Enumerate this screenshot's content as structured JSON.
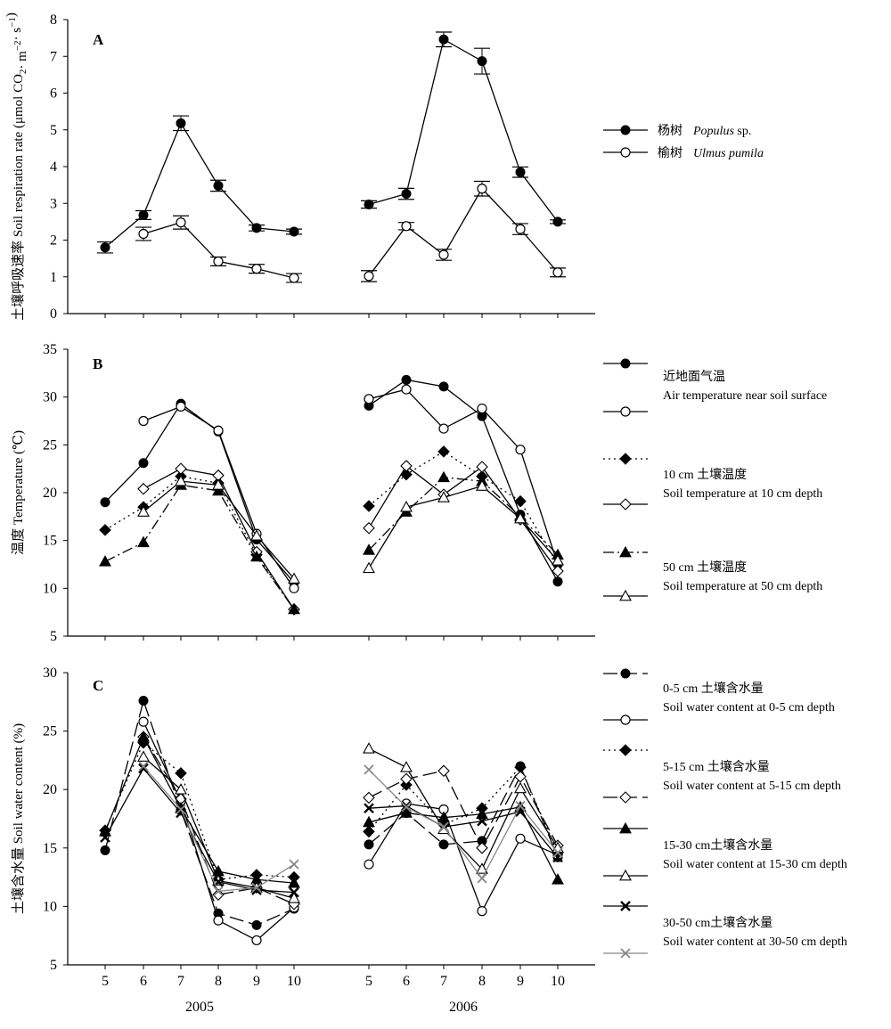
{
  "chart_data": [
    {
      "panel": "A",
      "type": "line",
      "ylabel": "土壤呼吸速率  Soil respiration rate (μmol CO2· m−2· s−1)",
      "ylabel_cn": "土壤呼吸速率",
      "ylabel_en": "Soil respiration rate (μmol CO",
      "ylabel_sub2": "2",
      "ylabel_mid": "· m",
      "ylabel_sup": "−2",
      "ylabel_mid2": "· s",
      "ylabel_sup2": "−1",
      "ylabel_end": ")",
      "ylim": [
        0,
        8
      ],
      "yticks": [
        "0",
        "1",
        "2",
        "3",
        "4",
        "5",
        "6",
        "7",
        "8"
      ],
      "error_bars": true,
      "series": [
        {
          "name": "杨树 Populus sp.",
          "name_cn": "杨树",
          "name_en": "Populus",
          "name_tail": " sp.",
          "marker": "filled-circle",
          "line": "solid",
          "y2005": [
            1.8,
            2.68,
            5.18,
            3.48,
            2.33,
            2.23
          ],
          "err2005": [
            0.15,
            0.12,
            0.2,
            0.15,
            0.08,
            0.07
          ],
          "y2006": [
            2.97,
            3.26,
            7.46,
            6.87,
            3.85,
            2.5
          ],
          "err2006": [
            0.1,
            0.15,
            0.2,
            0.35,
            0.14,
            0.05
          ]
        },
        {
          "name": "榆树 Ulmus pumila",
          "name_cn": "榆树",
          "name_en": "Ulmus pumila",
          "name_tail": "",
          "marker": "open-circle",
          "line": "solid",
          "y2005": [
            null,
            2.17,
            2.48,
            1.42,
            1.22,
            0.97
          ],
          "err2005": [
            0,
            0.18,
            0.18,
            0.12,
            0.12,
            0.12
          ],
          "y2006": [
            1.02,
            2.38,
            1.6,
            3.4,
            2.3,
            1.12
          ],
          "err2006": [
            0.15,
            0.1,
            0.15,
            0.2,
            0.15,
            0.12
          ]
        }
      ]
    },
    {
      "panel": "B",
      "type": "line",
      "ylabel": "温度  Temperature (℃)",
      "ylabel_cn": "温度",
      "ylabel_en": "Temperature (℃)",
      "ylim": [
        5,
        35
      ],
      "yticks": [
        "5",
        "10",
        "15",
        "20",
        "25",
        "30",
        "35"
      ],
      "series": [
        {
          "legend_cn": "近地面气温",
          "legend_en": "Air temperature near soil surface",
          "marker": "filled-circle",
          "line": "solid",
          "y2005": [
            19.0,
            23.1,
            29.3,
            26.4,
            15.1,
            10.6
          ],
          "y2006": [
            29.1,
            31.8,
            31.1,
            28.0,
            17.7,
            10.7
          ]
        },
        {
          "legend_cn": "",
          "legend_en": "",
          "marker": "open-circle",
          "line": "solid",
          "y2005": [
            null,
            27.5,
            29.0,
            26.5,
            15.7,
            10.0
          ],
          "y2006": [
            29.8,
            30.8,
            26.7,
            28.8,
            24.5,
            12.5
          ]
        },
        {
          "legend_cn": "10 cm 土壤温度",
          "legend_en": "Soil temperature at 10 cm  depth",
          "marker": "filled-diamond",
          "line": "dotted",
          "y2005": [
            16.1,
            18.5,
            21.7,
            21.0,
            13.5,
            7.8
          ],
          "y2006": [
            18.6,
            21.9,
            24.3,
            21.7,
            19.1,
            12.5
          ]
        },
        {
          "legend_cn": "",
          "legend_en": "",
          "marker": "open-diamond",
          "line": "solid",
          "y2005": [
            null,
            20.4,
            22.5,
            21.8,
            13.8,
            7.8
          ],
          "y2006": [
            16.3,
            22.8,
            19.8,
            22.7,
            17.2,
            11.8
          ]
        },
        {
          "legend_cn": "50 cm 土壤温度",
          "legend_en": "Soil temperature at 50 cm  depth",
          "marker": "filled-triangle",
          "line": "dashdot",
          "y2005": [
            12.8,
            14.8,
            20.8,
            20.2,
            13.3,
            7.8
          ],
          "y2006": [
            14.0,
            18.0,
            21.6,
            21.2,
            17.5,
            13.5
          ]
        },
        {
          "legend_cn": "",
          "legend_en": "",
          "marker": "open-triangle",
          "line": "solid",
          "y2005": [
            null,
            18.0,
            21.2,
            20.8,
            15.5,
            11.0
          ],
          "y2006": [
            12.1,
            18.5,
            19.5,
            20.7,
            17.3,
            12.9
          ]
        }
      ]
    },
    {
      "panel": "C",
      "type": "line",
      "ylabel": "土壤含水量  Soil water content (%)",
      "ylabel_cn": "土壤含水量",
      "ylabel_en": "Soil water content (%)",
      "ylim": [
        5,
        30
      ],
      "yticks": [
        "5",
        "10",
        "15",
        "20",
        "25",
        "30"
      ],
      "xticks": [
        "5",
        "6",
        "7",
        "8",
        "9",
        "10"
      ],
      "years": [
        "2005",
        "2006"
      ],
      "series": [
        {
          "legend_cn": "",
          "legend_en": "",
          "marker": "filled-circle",
          "line": "longdash",
          "y2005": [
            14.8,
            27.6,
            18.2,
            9.4,
            8.4,
            9.8
          ],
          "y2006": [
            15.3,
            18.0,
            15.3,
            15.6,
            22.0,
            14.2
          ]
        },
        {
          "legend_cn": "0-5 cm 土壤含水量",
          "legend_en": "Soil water content at 0-5 cm  depth",
          "marker": "open-circle",
          "line": "solid",
          "y2005": [
            null,
            25.8,
            19.0,
            8.8,
            7.1,
            9.9
          ],
          "y2006": [
            13.6,
            18.8,
            18.3,
            9.6,
            15.8,
            14.4
          ]
        },
        {
          "legend_cn": "",
          "legend_en": "",
          "marker": "filled-diamond",
          "line": "dotted",
          "y2005": [
            16.5,
            24.0,
            21.4,
            12.3,
            12.7,
            12.5
          ],
          "y2006": [
            16.4,
            20.4,
            17.0,
            18.4,
            21.9,
            14.6
          ]
        },
        {
          "legend_cn": "5-15 cm 土壤含水量",
          "legend_en": "Soil water content at 5-15 cm  depth",
          "marker": "open-diamond",
          "line": "longdash",
          "y2005": [
            null,
            24.5,
            19.2,
            11.0,
            11.6,
            10.2
          ],
          "y2006": [
            19.3,
            20.9,
            21.6,
            15.0,
            21.1,
            15.2
          ]
        },
        {
          "legend_cn": "15-30 cm土壤含水量",
          "legend_en": "Soil water content at 15-30 cm  depth",
          "marker": "filled-triangle",
          "line": "solid",
          "y2005": [
            16.4,
            24.5,
            18.4,
            13.0,
            12.3,
            12.0
          ],
          "y2006": [
            17.2,
            18.0,
            17.6,
            17.9,
            18.5,
            12.3
          ]
        },
        {
          "legend_cn": "",
          "legend_en": "",
          "marker": "open-triangle",
          "line": "solid",
          "y2005": [
            null,
            22.8,
            20.0,
            12.2,
            11.6,
            10.7
          ],
          "y2006": [
            23.5,
            21.9,
            16.6,
            13.2,
            20.1,
            15.0
          ]
        },
        {
          "legend_cn": "30-50 cm土壤含水量",
          "legend_en": "Soil water content at 30-50 cm  depth",
          "marker": "x",
          "line": "solid",
          "y2005": [
            15.9,
            21.8,
            18.0,
            12.1,
            11.4,
            11.2
          ],
          "y2006": [
            18.4,
            18.6,
            16.8,
            17.3,
            18.1,
            14.2
          ]
        },
        {
          "legend_cn": "",
          "legend_en": "",
          "marker": "x-gray",
          "line": "solid-gray",
          "y2005": [
            null,
            22.0,
            18.3,
            11.3,
            11.6,
            13.6
          ],
          "y2006": [
            21.7,
            18.5,
            16.8,
            12.4,
            18.6,
            14.6
          ]
        }
      ]
    }
  ]
}
